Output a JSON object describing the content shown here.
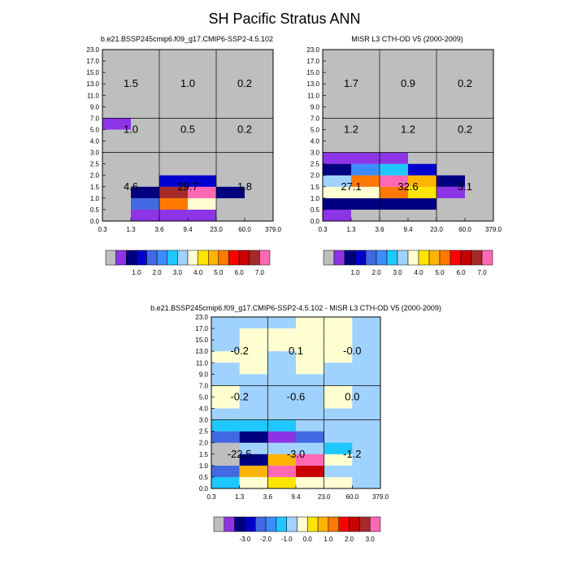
{
  "title": "SH Pacific Stratus ANN",
  "panels": [
    {
      "id": "model",
      "title": "b.e21.BSSP245cmip6.f09_g17.CMIP6-SSP2-4.5.102",
      "colorbar": "abs"
    },
    {
      "id": "obs",
      "title": "MISR L3 CTH-OD V5 (2000-2009)",
      "colorbar": "abs"
    },
    {
      "id": "diff",
      "title": "b.e21.BSSP245cmip6.f09_g17.CMIP6-SSP2-4.5.102 - MISR L3 CTH-OD V5 (2000-2009)",
      "colorbar": "diff"
    }
  ],
  "colorbars": {
    "abs": {
      "colors": [
        "#bebebe",
        "#8c34e6",
        "#000080",
        "#0000cd",
        "#4169e1",
        "#3c8cff",
        "#1ec8ff",
        "#a0d2ff",
        "#ffffd2",
        "#ffe600",
        "#ffb400",
        "#ff7800",
        "#ff0000",
        "#c80000",
        "#a52a2a",
        "#ff69b4"
      ],
      "labels": [
        "1.0",
        "2.0",
        "3.0",
        "4.0",
        "5.0",
        "6.0",
        "7.0"
      ]
    },
    "diff": {
      "colors": [
        "#bebebe",
        "#8c34e6",
        "#000080",
        "#0000cd",
        "#4169e1",
        "#3c8cff",
        "#1ec8ff",
        "#a0d2ff",
        "#ffffd2",
        "#ffe600",
        "#ffb400",
        "#ff7800",
        "#ff0000",
        "#c80000",
        "#a52a2a",
        "#ff69b4"
      ],
      "labels": [
        "-3.0",
        "-2.0",
        "-1.0",
        "0.0",
        "1.0",
        "2.0",
        "3.0"
      ]
    }
  },
  "chart_data": [
    {
      "type": "heatmap",
      "title": "b.e21.BSSP245cmip6.f09_g17.CMIP6-SSP2-4.5.102",
      "x_ticks": [
        "0.3",
        "1.3",
        "3.6",
        "9.4",
        "23.0",
        "60.0",
        "379.0"
      ],
      "y_ticks": [
        "0.0",
        "0.5",
        "1.0",
        "1.5",
        "2.0",
        "2.5",
        "3.0",
        "4.0",
        "5.0",
        "7.0",
        "9.0",
        "11.0",
        "13.0",
        "15.0",
        "17.0",
        "23.0"
      ],
      "background": "#bebebe",
      "cells": [
        [
          0,
          1,
          8,
          9,
          "#8c34e6"
        ],
        [
          1,
          2,
          0,
          1,
          "#8c34e6"
        ],
        [
          2,
          4,
          0,
          1,
          "#8c34e6"
        ],
        [
          1,
          2,
          1,
          2,
          "#4169e1"
        ],
        [
          2,
          3,
          1,
          2,
          "#ff7800"
        ],
        [
          3,
          4,
          1,
          2,
          "#ffffd2"
        ],
        [
          1,
          2,
          2,
          3,
          "#000080"
        ],
        [
          2,
          3,
          2,
          3,
          "#a52a2a"
        ],
        [
          3,
          4,
          2,
          3,
          "#ff69b4"
        ],
        [
          4,
          5,
          2,
          3,
          "#000080"
        ],
        [
          2,
          4,
          3,
          4,
          "#0000cd"
        ]
      ],
      "summary": [
        {
          "x": 0.5,
          "y": 12,
          "value": "1.5"
        },
        {
          "x": 2.5,
          "y": 12,
          "value": "1.0"
        },
        {
          "x": 4.5,
          "y": 12,
          "value": "0.2"
        },
        {
          "x": 0.5,
          "y": 8,
          "value": "1.0"
        },
        {
          "x": 2.5,
          "y": 8,
          "value": "0.5"
        },
        {
          "x": 4.5,
          "y": 8,
          "value": "0.2"
        },
        {
          "x": 0.5,
          "y": 3,
          "value": "4.6"
        },
        {
          "x": 2.5,
          "y": 3,
          "value": "29.7"
        },
        {
          "x": 4.5,
          "y": 3,
          "value": "1.8"
        }
      ]
    },
    {
      "type": "heatmap",
      "title": "MISR L3 CTH-OD V5 (2000-2009)",
      "x_ticks": [
        "0.3",
        "1.3",
        "3.6",
        "9.4",
        "23.0",
        "60.0",
        "379.0"
      ],
      "y_ticks": [
        "0.0",
        "0.5",
        "1.0",
        "1.5",
        "2.0",
        "2.5",
        "3.0",
        "4.0",
        "5.0",
        "7.0",
        "9.0",
        "11.0",
        "13.0",
        "15.0",
        "17.0",
        "23.0"
      ],
      "background": "#bebebe",
      "cells": [
        [
          0,
          1,
          0,
          1,
          "#8c34e6"
        ],
        [
          0,
          4,
          1,
          2,
          "#000080"
        ],
        [
          0,
          2,
          2,
          3,
          "#ffffd2"
        ],
        [
          2,
          3,
          2,
          3,
          "#ff7800"
        ],
        [
          3,
          4,
          2,
          3,
          "#ffe600"
        ],
        [
          4,
          5,
          2,
          3,
          "#8c34e6"
        ],
        [
          0,
          1,
          3,
          4,
          "#a0d2ff"
        ],
        [
          1,
          2,
          3,
          4,
          "#ff7800"
        ],
        [
          2,
          3,
          3,
          4,
          "#ff69b4"
        ],
        [
          3,
          4,
          3,
          4,
          "#ffb400"
        ],
        [
          4,
          5,
          3,
          4,
          "#000080"
        ],
        [
          0,
          1,
          4,
          5,
          "#000080"
        ],
        [
          1,
          2,
          4,
          5,
          "#3c8cff"
        ],
        [
          2,
          3,
          4,
          5,
          "#1ec8ff"
        ],
        [
          3,
          4,
          4,
          5,
          "#0000cd"
        ],
        [
          0,
          3,
          5,
          6,
          "#8c34e6"
        ]
      ],
      "summary": [
        {
          "x": 0.5,
          "y": 12,
          "value": "1.7"
        },
        {
          "x": 2.5,
          "y": 12,
          "value": "0.9"
        },
        {
          "x": 4.5,
          "y": 12,
          "value": "0.2"
        },
        {
          "x": 0.5,
          "y": 8,
          "value": "1.2"
        },
        {
          "x": 2.5,
          "y": 8,
          "value": "1.2"
        },
        {
          "x": 4.5,
          "y": 8,
          "value": "0.2"
        },
        {
          "x": 0.5,
          "y": 3,
          "value": "27.1"
        },
        {
          "x": 2.5,
          "y": 3,
          "value": "32.6"
        },
        {
          "x": 4.5,
          "y": 3,
          "value": "3.1"
        }
      ]
    },
    {
      "type": "heatmap",
      "title": "b.e21.BSSP245cmip6.f09_g17.CMIP6-SSP2-4.5.102 - MISR L3 CTH-OD V5 (2000-2009)",
      "x_ticks": [
        "0.3",
        "1.3",
        "3.6",
        "9.4",
        "23.0",
        "60.0",
        "379.0"
      ],
      "y_ticks": [
        "0.0",
        "0.5",
        "1.0",
        "1.5",
        "2.0",
        "2.5",
        "3.0",
        "4.0",
        "5.0",
        "7.0",
        "9.0",
        "11.0",
        "13.0",
        "15.0",
        "17.0",
        "23.0"
      ],
      "background": "#a0d2ff",
      "cells": [
        [
          0,
          1,
          0,
          1,
          "#1ec8ff"
        ],
        [
          1,
          2,
          0,
          1,
          "#ffffd2"
        ],
        [
          2,
          3,
          0,
          1,
          "#ffe600"
        ],
        [
          3,
          4,
          0,
          1,
          "#ffffd2"
        ],
        [
          4,
          5,
          0,
          1,
          "#ffffd2"
        ],
        [
          0,
          1,
          1,
          2,
          "#4169e1"
        ],
        [
          1,
          2,
          1,
          2,
          "#ffb400"
        ],
        [
          2,
          3,
          1,
          2,
          "#ff69b4"
        ],
        [
          3,
          4,
          1,
          2,
          "#c80000"
        ],
        [
          0,
          1,
          2,
          3,
          "#bebebe"
        ],
        [
          1,
          2,
          2,
          3,
          "#000080"
        ],
        [
          2,
          3,
          2,
          3,
          "#ffb400"
        ],
        [
          3,
          4,
          2,
          3,
          "#ff69b4"
        ],
        [
          4,
          5,
          2,
          3,
          "#ffffd2"
        ],
        [
          0,
          1,
          3,
          4,
          "#bebebe"
        ],
        [
          4,
          5,
          3,
          4,
          "#1ec8ff"
        ],
        [
          0,
          1,
          4,
          5,
          "#4169e1"
        ],
        [
          1,
          2,
          4,
          5,
          "#000080"
        ],
        [
          2,
          3,
          4,
          5,
          "#8c34e6"
        ],
        [
          3,
          4,
          4,
          5,
          "#4169e1"
        ],
        [
          0,
          2,
          5,
          6,
          "#1ec8ff"
        ],
        [
          2,
          3,
          5,
          6,
          "#1ec8ff"
        ],
        [
          0,
          1,
          7,
          9,
          "#ffffd2"
        ],
        [
          4,
          5,
          7,
          9,
          "#ffffd2"
        ],
        [
          0,
          1,
          11,
          12,
          "#ffffd2"
        ],
        [
          1,
          2,
          10,
          14,
          "#ffffd2"
        ],
        [
          3,
          4,
          10,
          11,
          "#ffffd2"
        ],
        [
          3,
          4,
          11,
          12,
          "#ffffd2"
        ],
        [
          3,
          4,
          14,
          15,
          "#ffffd2"
        ],
        [
          4,
          5,
          11,
          15,
          "#ffffd2"
        ],
        [
          2,
          4,
          12,
          14,
          "#ffffd2"
        ]
      ],
      "summary": [
        {
          "x": 0.5,
          "y": 12,
          "value": "-0.2"
        },
        {
          "x": 2.5,
          "y": 12,
          "value": "0.1"
        },
        {
          "x": 4.5,
          "y": 12,
          "value": "-0.0"
        },
        {
          "x": 0.5,
          "y": 8,
          "value": "-0.2"
        },
        {
          "x": 2.5,
          "y": 8,
          "value": "-0.6"
        },
        {
          "x": 4.5,
          "y": 8,
          "value": "0.0"
        },
        {
          "x": 0.5,
          "y": 3,
          "value": "-22.5"
        },
        {
          "x": 2.5,
          "y": 3,
          "value": "-3.0"
        },
        {
          "x": 4.5,
          "y": 3,
          "value": "-1.2"
        }
      ]
    }
  ]
}
